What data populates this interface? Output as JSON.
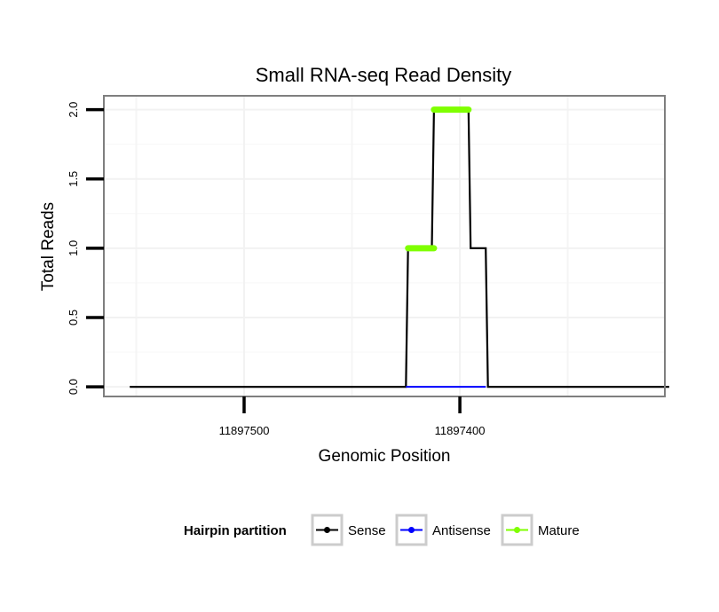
{
  "chart_data": {
    "type": "line",
    "title": "Small RNA-seq Read Density",
    "xlabel": "Genomic Position",
    "ylabel": "Total Reads",
    "x_reversed": true,
    "xlim": [
      11897565,
      11897305
    ],
    "ylim": [
      -0.07,
      2.1
    ],
    "x_ticks": [
      11897500,
      11897400
    ],
    "x_tick_labels": [
      "11897500",
      "11897400"
    ],
    "y_ticks": [
      0,
      0.5,
      1,
      1.5,
      2
    ],
    "y_tick_labels": [
      "0.0",
      "0.5",
      "1.0",
      "1.5",
      "2.0"
    ],
    "grid": true,
    "legend_position": "bottom",
    "legend_title": "Hairpin partition",
    "series": [
      {
        "name": "Sense",
        "color": "#000000",
        "x": [
          11897553,
          11897425,
          11897424,
          11897413,
          11897412,
          11897396,
          11897395,
          11897388,
          11897387,
          11897303
        ],
        "y": [
          0,
          0,
          1,
          1,
          2,
          2,
          1,
          1,
          0,
          0
        ]
      },
      {
        "name": "Antisense",
        "color": "#0000ff",
        "x": [
          11897425,
          11897388
        ],
        "y": [
          0,
          0
        ]
      },
      {
        "name": "Mature",
        "color": "#7fff00",
        "segments": [
          {
            "x": [
              11897424,
              11897412
            ],
            "y": [
              1,
              1
            ]
          },
          {
            "x": [
              11897412,
              11897396
            ],
            "y": [
              2,
              2
            ]
          }
        ]
      }
    ]
  }
}
